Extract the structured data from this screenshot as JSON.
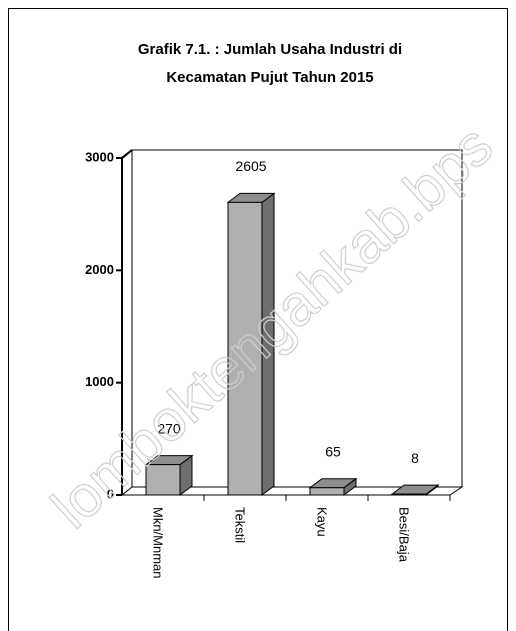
{
  "chart_data": {
    "type": "bar3d",
    "title": [
      "Grafik 7.1. : Jumlah Usaha Industri di",
      "Kecamatan Pujut Tahun 2015"
    ],
    "categories": [
      "Mkn/Mnman",
      "Tekstil",
      "Kayu",
      "Besi/Baja"
    ],
    "values": [
      270,
      2605,
      65,
      8
    ],
    "color": "#b0b0b0",
    "ylim": [
      0,
      3000
    ],
    "yticks": [
      0,
      1000,
      2000,
      3000
    ],
    "watermark": "lomboktengahkab.bps"
  }
}
